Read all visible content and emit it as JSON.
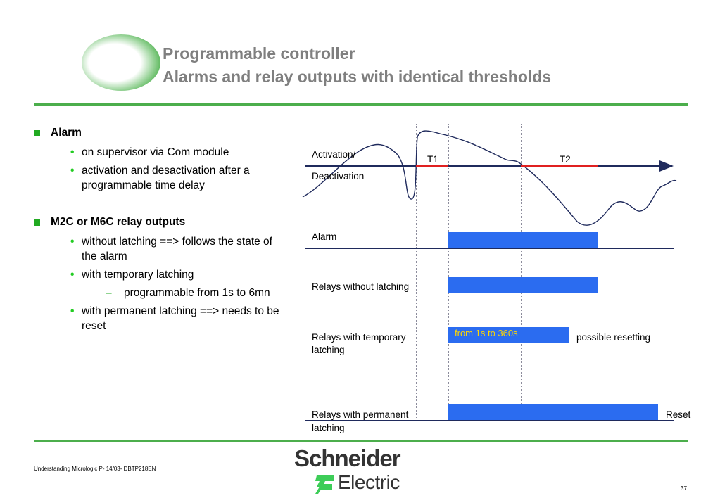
{
  "title": {
    "line1": "Programmable controller",
    "line2": "Alarms and relay outputs with identical thresholds"
  },
  "bullets": {
    "alarm": {
      "label": "Alarm",
      "items": [
        "on supervisor via Com module",
        "activation and  desactivation after a programmable time delay"
      ]
    },
    "relays": {
      "label": "M2C or M6C relay outputs",
      "item1": "without  latching ==> follows the state of the alarm",
      "item2": "with temporary latching",
      "sub": "programmable from  1s to 6mn",
      "item3": "with permanent latching  ==> needs to be reset"
    }
  },
  "diagram": {
    "activation_line1": "Activation/",
    "activation_line2": "Deactivation",
    "t1": "T1",
    "t2": "T2",
    "alarm": "Alarm",
    "relays_without": "Relays without  latching",
    "relays_temporary_line1": "Relays with temporary",
    "relays_temporary_line2": "latching",
    "temporary_range": "from 1s to 360s",
    "possible_resetting": "possible resetting",
    "relays_permanent_line1": "Relays with permanent",
    "relays_permanent_line2": "latching",
    "reset": "Reset",
    "colors": {
      "bar": "#2b6cf0",
      "delay": "#e02020",
      "axis": "#1f2a5c",
      "range_text": "#ffd700"
    }
  },
  "footer": {
    "text": "Understanding Micrologic P- 14/03- DBTP218EN",
    "page": "37"
  },
  "logo": {
    "line1": "Schneider",
    "line2": "Electric"
  }
}
